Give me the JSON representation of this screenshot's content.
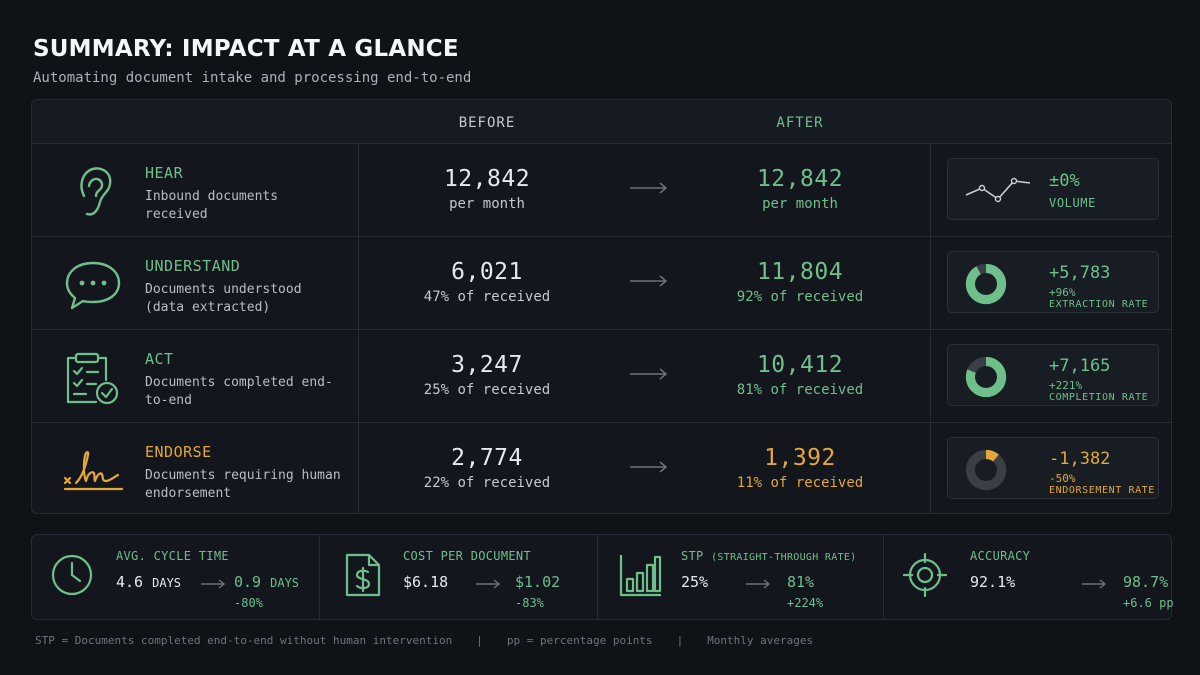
{
  "header": {
    "title": "SUMMARY: IMPACT AT A GLANCE",
    "subtitle": "Automating document intake and processing end-to-end"
  },
  "columns": {
    "before": "BEFORE",
    "after": "AFTER"
  },
  "colors": {
    "green": "#6fbf8a",
    "amber": "#e3a73a",
    "background": "#0f1217"
  },
  "rows": [
    {
      "icon": "ear-icon",
      "name": "HEAR",
      "color": "#6fbf8a",
      "description": "Inbound documents received",
      "before_value": "12,842",
      "before_sub": "per month",
      "after_value": "12,842",
      "after_sub": "per month",
      "metric": {
        "graphic": "sparkline-icon",
        "value": "±0%",
        "pct": "",
        "label": "VOLUME"
      }
    },
    {
      "icon": "chat-bubble-icon",
      "name": "UNDERSTAND",
      "color": "#6fbf8a",
      "description": "Documents understood (data extracted)",
      "before_value": "6,021",
      "before_sub": "47% of received",
      "after_value": "11,804",
      "after_sub": "92% of received",
      "metric": {
        "graphic": "donut-icon",
        "donut_fraction": 0.92,
        "value": "+5,783",
        "pct": "+96%",
        "label": "EXTRACTION RATE"
      }
    },
    {
      "icon": "checklist-icon",
      "name": "ACT",
      "color": "#6fbf8a",
      "description": "Documents completed end-to-end",
      "before_value": "3,247",
      "before_sub": "25% of received",
      "after_value": "10,412",
      "after_sub": "81% of received",
      "metric": {
        "graphic": "donut-icon",
        "donut_fraction": 0.81,
        "value": "+7,165",
        "pct": "+221%",
        "label": "COMPLETION RATE"
      }
    },
    {
      "icon": "signature-icon",
      "name": "ENDORSE",
      "color": "#e3a73a",
      "description": "Documents requiring human endorsement",
      "before_value": "2,774",
      "before_sub": "22% of received",
      "after_value": "1,392",
      "after_sub": "11% of received",
      "metric": {
        "graphic": "donut-icon",
        "donut_fraction": 0.11,
        "value": "-1,382",
        "pct": "-50%",
        "label": "ENDORSEMENT RATE"
      }
    }
  ],
  "kpis": [
    {
      "icon": "clock-icon",
      "label": "AVG. CYCLE TIME",
      "label_small": "",
      "before": "4.6",
      "before_unit": "DAYS",
      "after": "0.9",
      "after_unit": "DAYS",
      "delta": "-80%"
    },
    {
      "icon": "document-dollar-icon",
      "label": "COST PER DOCUMENT",
      "label_small": "",
      "before": "$6.18",
      "before_unit": "",
      "after": "$1.02",
      "after_unit": "",
      "delta": "-83%"
    },
    {
      "icon": "bar-chart-icon",
      "label": "STP",
      "label_small": "(STRAIGHT-THROUGH RATE)",
      "before": "25%",
      "before_unit": "",
      "after": "81%",
      "after_unit": "",
      "delta": "+224%"
    },
    {
      "icon": "target-icon",
      "label": "ACCURACY",
      "label_small": "",
      "before": "92.1%",
      "before_unit": "",
      "after": "98.7%",
      "after_unit": "",
      "delta": "+6.6 pp"
    }
  ],
  "footer": {
    "note1": "STP = Documents completed end-to-end without human intervention",
    "sep": "|",
    "note2": "pp = percentage points",
    "note3": "Monthly averages"
  }
}
